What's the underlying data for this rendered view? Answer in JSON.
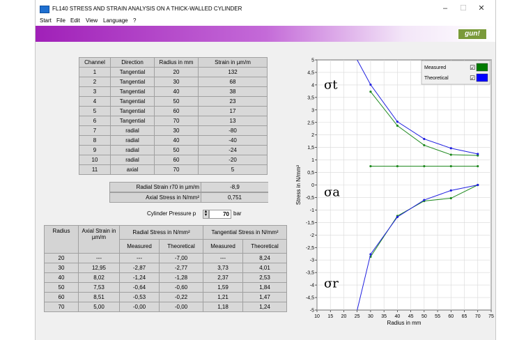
{
  "window": {
    "title": "FL140 STRESS AND STRAIN ANALYSIS ON A THICK-WALLED CYLINDER",
    "minimize": "–",
    "maximize": "☐",
    "close": "✕"
  },
  "menu": [
    "Start",
    "File",
    "Edit",
    "View",
    "Language",
    "?"
  ],
  "logo": "gun!",
  "strain_table": {
    "headers": [
      "Channel",
      "Direction",
      "Radius in mm",
      "Strain in µm/m"
    ],
    "rows": [
      [
        "1",
        "Tangential",
        "20",
        "132"
      ],
      [
        "2",
        "Tangential",
        "30",
        "68"
      ],
      [
        "3",
        "Tangential",
        "40",
        "38"
      ],
      [
        "4",
        "Tangential",
        "50",
        "23"
      ],
      [
        "5",
        "Tangential",
        "60",
        "17"
      ],
      [
        "6",
        "Tangential",
        "70",
        "13"
      ],
      [
        "7",
        "radial",
        "30",
        "-80"
      ],
      [
        "8",
        "radial",
        "40",
        "-40"
      ],
      [
        "9",
        "radial",
        "50",
        "-24"
      ],
      [
        "10",
        "radial",
        "60",
        "-20"
      ],
      [
        "11",
        "axial",
        "70",
        "5"
      ]
    ]
  },
  "radial_strain": {
    "label": "Radial Strain r70 in µm/m",
    "value": "-8,9"
  },
  "axial_stress": {
    "label": "Axial Stress in N/mm²",
    "value": "0,751"
  },
  "pressure": {
    "label": "Cylinder Pressure  p",
    "value": "70",
    "unit": "bar"
  },
  "stress_table": {
    "h_radius": "Radius",
    "h_axial": "Axial Strain in µm/m",
    "h_radial": "Radial Stress in N/mm²",
    "h_tang": "Tangential Stress in N/mm²",
    "h_meas": "Measured",
    "h_theo": "Theoretical",
    "rows": [
      [
        "20",
        "---",
        "---",
        "-7,00",
        "---",
        "8,24"
      ],
      [
        "30",
        "12,95",
        "-2,87",
        "-2,77",
        "3,73",
        "4,01"
      ],
      [
        "40",
        "8,02",
        "-1,24",
        "-1,28",
        "2,37",
        "2,53"
      ],
      [
        "50",
        "7,53",
        "-0,64",
        "-0,60",
        "1,59",
        "1,84"
      ],
      [
        "60",
        "8,51",
        "-0,53",
        "-0,22",
        "1,21",
        "1,47"
      ],
      [
        "70",
        "5,00",
        "-0,00",
        "-0,00",
        "1,18",
        "1,24"
      ]
    ]
  },
  "chart_data": {
    "type": "line",
    "xlabel": "Radius in mm",
    "ylabel": "Stress in N/mm²",
    "xlim": [
      10,
      75
    ],
    "ylim": [
      -5,
      5
    ],
    "xticks": [
      "10",
      "15",
      "20",
      "25",
      "30",
      "35",
      "40",
      "45",
      "50",
      "55",
      "60",
      "65",
      "70",
      "75"
    ],
    "yticks": [
      "5",
      "4,5",
      "4",
      "3,5",
      "3",
      "2,5",
      "2",
      "1,5",
      "1",
      "0,5",
      "0",
      "-0,5",
      "-1",
      "-1,5",
      "-2",
      "-2,5",
      "-3",
      "-3,5",
      "-4",
      "-4,5",
      "-5"
    ],
    "legend": [
      {
        "name": "Measured",
        "color": "#007a00",
        "checked": "☑"
      },
      {
        "name": "Theoretical",
        "color": "#0000ff",
        "checked": "☑"
      }
    ],
    "labels": {
      "sigma_t": "σt",
      "sigma_a": "σa",
      "sigma_r": "σr"
    },
    "series": [
      {
        "name": "Measured tangential",
        "color": "#1f8a1f",
        "x": [
          30,
          40,
          50,
          60,
          70
        ],
        "y": [
          3.73,
          2.37,
          1.59,
          1.21,
          1.18
        ]
      },
      {
        "name": "Theoretical tangential",
        "color": "#2020e0",
        "x": [
          25,
          30,
          40,
          50,
          60,
          70
        ],
        "y": [
          5.0,
          4.01,
          2.53,
          1.84,
          1.47,
          1.24
        ]
      },
      {
        "name": "Measured axial",
        "color": "#1f8a1f",
        "x": [
          30,
          40,
          50,
          60,
          70
        ],
        "y": [
          0.751,
          0.751,
          0.751,
          0.751,
          0.751
        ]
      },
      {
        "name": "Measured radial",
        "color": "#1f8a1f",
        "x": [
          30,
          40,
          50,
          60,
          70
        ],
        "y": [
          -2.87,
          -1.24,
          -0.64,
          -0.53,
          0.0
        ]
      },
      {
        "name": "Theoretical radial",
        "color": "#2020e0",
        "x": [
          25,
          30,
          40,
          50,
          60,
          70
        ],
        "y": [
          -5.0,
          -2.77,
          -1.28,
          -0.6,
          -0.22,
          0.0
        ]
      }
    ]
  }
}
